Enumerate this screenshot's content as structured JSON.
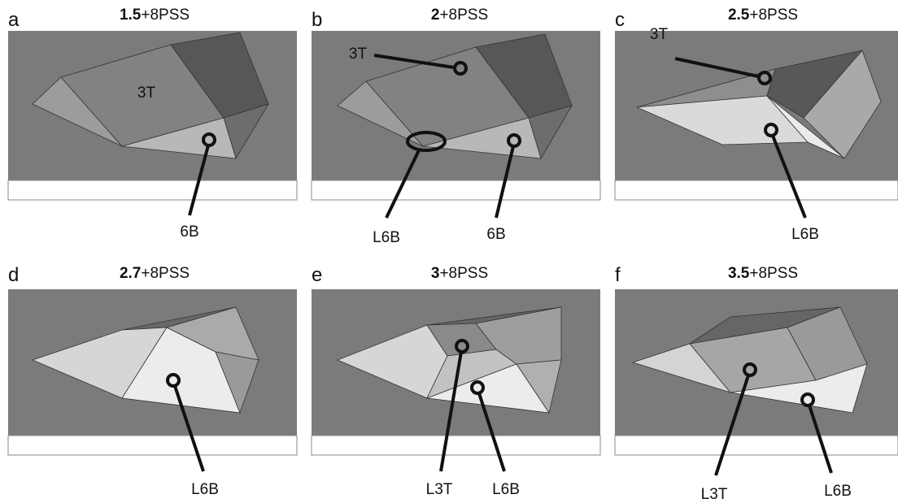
{
  "panels": [
    {
      "letter": "a",
      "title": {
        "bold": "1.5",
        "rest": "+8PSS"
      },
      "labels": [
        "3T",
        "6B"
      ]
    },
    {
      "letter": "b",
      "title": {
        "bold": "2",
        "rest": "+8PSS"
      },
      "labels": [
        "3T",
        "L6B",
        "6B"
      ]
    },
    {
      "letter": "c",
      "title": {
        "bold": "2.5",
        "rest": "+8PSS"
      },
      "labels": [
        "3T",
        "L6B"
      ]
    },
    {
      "letter": "d",
      "title": {
        "bold": "2.7",
        "rest": "+8PSS"
      },
      "labels": [
        "L6B"
      ]
    },
    {
      "letter": "e",
      "title": {
        "bold": "3",
        "rest": "+8PSS"
      },
      "labels": [
        "L3T",
        "L6B"
      ]
    },
    {
      "letter": "f",
      "title": {
        "bold": "3.5",
        "rest": "+8PSS"
      },
      "labels": [
        "L3T",
        "L6B"
      ]
    }
  ]
}
